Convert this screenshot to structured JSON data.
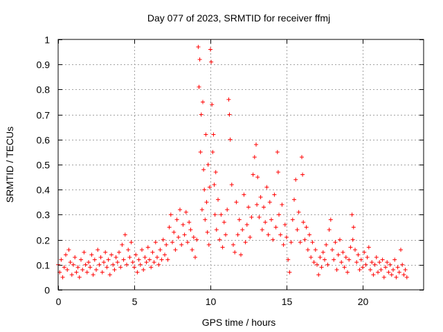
{
  "chart_data": {
    "type": "scatter",
    "title": "Day 077 of 2023, SRMTID for receiver ffmj",
    "xlabel": "GPS time / hours",
    "ylabel": "SRMTID / TECUs",
    "xlim": [
      0,
      24
    ],
    "ylim": [
      0,
      1
    ],
    "xticks": [
      0,
      5,
      10,
      15,
      20
    ],
    "xtick_labels": [
      "0",
      "5",
      "10",
      "15",
      "20"
    ],
    "yticks": [
      0,
      0.1,
      0.2,
      0.3,
      0.4,
      0.5,
      0.6,
      0.7,
      0.8,
      0.9,
      1
    ],
    "ytick_labels": [
      "0",
      "0.1",
      "0.2",
      "0.3",
      "0.4",
      "0.5",
      "0.6",
      "0.7",
      "0.8",
      "0.9",
      "1"
    ],
    "grid": true,
    "marker": "+",
    "color": "#ff0000",
    "series": [
      {
        "name": "ffmj",
        "points": [
          [
            0.0,
            0.1
          ],
          [
            0.1,
            0.07
          ],
          [
            0.2,
            0.12
          ],
          [
            0.3,
            0.05
          ],
          [
            0.4,
            0.09
          ],
          [
            0.5,
            0.14
          ],
          [
            0.6,
            0.08
          ],
          [
            0.7,
            0.16
          ],
          [
            0.8,
            0.11
          ],
          [
            0.9,
            0.06
          ],
          [
            1.0,
            0.1
          ],
          [
            1.1,
            0.13
          ],
          [
            1.2,
            0.07
          ],
          [
            1.3,
            0.09
          ],
          [
            1.4,
            0.05
          ],
          [
            1.5,
            0.12
          ],
          [
            1.6,
            0.08
          ],
          [
            1.7,
            0.15
          ],
          [
            1.8,
            0.1
          ],
          [
            1.9,
            0.07
          ],
          [
            2.0,
            0.11
          ],
          [
            2.1,
            0.09
          ],
          [
            2.2,
            0.14
          ],
          [
            2.3,
            0.06
          ],
          [
            2.4,
            0.12
          ],
          [
            2.5,
            0.08
          ],
          [
            2.6,
            0.16
          ],
          [
            2.7,
            0.1
          ],
          [
            2.8,
            0.13
          ],
          [
            2.9,
            0.07
          ],
          [
            3.0,
            0.11
          ],
          [
            3.1,
            0.15
          ],
          [
            3.2,
            0.09
          ],
          [
            3.3,
            0.12
          ],
          [
            3.4,
            0.06
          ],
          [
            3.5,
            0.14
          ],
          [
            3.6,
            0.1
          ],
          [
            3.7,
            0.08
          ],
          [
            3.8,
            0.13
          ],
          [
            3.9,
            0.11
          ],
          [
            4.0,
            0.15
          ],
          [
            4.1,
            0.09
          ],
          [
            4.2,
            0.18
          ],
          [
            4.3,
            0.12
          ],
          [
            4.4,
            0.22
          ],
          [
            4.5,
            0.1
          ],
          [
            4.6,
            0.16
          ],
          [
            4.7,
            0.13
          ],
          [
            4.8,
            0.19
          ],
          [
            4.9,
            0.11
          ],
          [
            5.0,
            0.09
          ],
          [
            5.1,
            0.14
          ],
          [
            5.2,
            0.07
          ],
          [
            5.3,
            0.12
          ],
          [
            5.4,
            0.1
          ],
          [
            5.5,
            0.16
          ],
          [
            5.6,
            0.08
          ],
          [
            5.7,
            0.13
          ],
          [
            5.8,
            0.11
          ],
          [
            5.9,
            0.17
          ],
          [
            6.0,
            0.12
          ],
          [
            6.1,
            0.09
          ],
          [
            6.2,
            0.15
          ],
          [
            6.3,
            0.11
          ],
          [
            6.4,
            0.19
          ],
          [
            6.5,
            0.13
          ],
          [
            6.6,
            0.1
          ],
          [
            6.7,
            0.16
          ],
          [
            6.8,
            0.12
          ],
          [
            6.9,
            0.2
          ],
          [
            7.0,
            0.14
          ],
          [
            7.1,
            0.18
          ],
          [
            7.2,
            0.12
          ],
          [
            7.3,
            0.25
          ],
          [
            7.4,
            0.3
          ],
          [
            7.5,
            0.19
          ],
          [
            7.6,
            0.23
          ],
          [
            7.7,
            0.16
          ],
          [
            7.8,
            0.28
          ],
          [
            7.9,
            0.21
          ],
          [
            8.0,
            0.32
          ],
          [
            8.1,
            0.18
          ],
          [
            8.2,
            0.26
          ],
          [
            8.3,
            0.22
          ],
          [
            8.4,
            0.31
          ],
          [
            8.5,
            0.19
          ],
          [
            8.6,
            0.27
          ],
          [
            8.7,
            0.24
          ],
          [
            8.8,
            0.16
          ],
          [
            8.9,
            0.21
          ],
          [
            9.0,
            0.13
          ],
          [
            9.1,
            0.2
          ],
          [
            9.2,
            0.97
          ],
          [
            9.25,
            0.81
          ],
          [
            9.3,
            0.92
          ],
          [
            9.35,
            0.55
          ],
          [
            9.4,
            0.7
          ],
          [
            9.45,
            0.32
          ],
          [
            9.5,
            0.75
          ],
          [
            9.55,
            0.48
          ],
          [
            9.6,
            0.4
          ],
          [
            9.65,
            0.28
          ],
          [
            9.7,
            0.62
          ],
          [
            9.75,
            0.35
          ],
          [
            9.8,
            0.23
          ],
          [
            9.85,
            0.5
          ],
          [
            9.9,
            0.18
          ],
          [
            9.95,
            0.41
          ],
          [
            10.0,
            0.96
          ],
          [
            10.05,
            0.91
          ],
          [
            10.1,
            0.74
          ],
          [
            10.15,
            0.55
          ],
          [
            10.2,
            0.62
          ],
          [
            10.25,
            0.42
          ],
          [
            10.3,
            0.3
          ],
          [
            10.35,
            0.47
          ],
          [
            10.4,
            0.24
          ],
          [
            10.5,
            0.36
          ],
          [
            10.6,
            0.2
          ],
          [
            10.7,
            0.3
          ],
          [
            10.8,
            0.17
          ],
          [
            10.9,
            0.27
          ],
          [
            11.0,
            0.22
          ],
          [
            11.1,
            0.32
          ],
          [
            11.2,
            0.76
          ],
          [
            11.25,
            0.7
          ],
          [
            11.3,
            0.6
          ],
          [
            11.4,
            0.42
          ],
          [
            11.5,
            0.18
          ],
          [
            11.6,
            0.15
          ],
          [
            11.7,
            0.35
          ],
          [
            11.8,
            0.22
          ],
          [
            11.9,
            0.28
          ],
          [
            12.0,
            0.14
          ],
          [
            12.1,
            0.24
          ],
          [
            12.2,
            0.38
          ],
          [
            12.3,
            0.19
          ],
          [
            12.4,
            0.26
          ],
          [
            12.5,
            0.33
          ],
          [
            12.6,
            0.21
          ],
          [
            12.7,
            0.29
          ],
          [
            12.8,
            0.46
          ],
          [
            12.9,
            0.53
          ],
          [
            13.0,
            0.58
          ],
          [
            13.05,
            0.34
          ],
          [
            13.1,
            0.45
          ],
          [
            13.2,
            0.29
          ],
          [
            13.3,
            0.37
          ],
          [
            13.4,
            0.24
          ],
          [
            13.5,
            0.33
          ],
          [
            13.6,
            0.27
          ],
          [
            13.7,
            0.41
          ],
          [
            13.8,
            0.22
          ],
          [
            13.9,
            0.35
          ],
          [
            14.0,
            0.28
          ],
          [
            14.1,
            0.2
          ],
          [
            14.2,
            0.38
          ],
          [
            14.3,
            0.25
          ],
          [
            14.4,
            0.55
          ],
          [
            14.45,
            0.47
          ],
          [
            14.5,
            0.3
          ],
          [
            14.6,
            0.22
          ],
          [
            14.7,
            0.34
          ],
          [
            14.8,
            0.18
          ],
          [
            14.9,
            0.26
          ],
          [
            15.0,
            0.21
          ],
          [
            15.1,
            0.12
          ],
          [
            15.2,
            0.07
          ],
          [
            15.3,
            0.19
          ],
          [
            15.4,
            0.28
          ],
          [
            15.5,
            0.36
          ],
          [
            15.6,
            0.44
          ],
          [
            15.7,
            0.24
          ],
          [
            15.8,
            0.31
          ],
          [
            15.9,
            0.19
          ],
          [
            16.0,
            0.53
          ],
          [
            16.05,
            0.46
          ],
          [
            16.1,
            0.27
          ],
          [
            16.2,
            0.2
          ],
          [
            16.3,
            0.25
          ],
          [
            16.4,
            0.16
          ],
          [
            16.5,
            0.22
          ],
          [
            16.6,
            0.13
          ],
          [
            16.7,
            0.19
          ],
          [
            16.8,
            0.11
          ],
          [
            16.9,
            0.16
          ],
          [
            17.0,
            0.1
          ],
          [
            17.1,
            0.06
          ],
          [
            17.2,
            0.13
          ],
          [
            17.3,
            0.09
          ],
          [
            17.4,
            0.15
          ],
          [
            17.5,
            0.12
          ],
          [
            17.6,
            0.18
          ],
          [
            17.7,
            0.1
          ],
          [
            17.8,
            0.24
          ],
          [
            17.9,
            0.28
          ],
          [
            18.0,
            0.16
          ],
          [
            18.1,
            0.12
          ],
          [
            18.2,
            0.19
          ],
          [
            18.3,
            0.08
          ],
          [
            18.4,
            0.14
          ],
          [
            18.5,
            0.2
          ],
          [
            18.6,
            0.11
          ],
          [
            18.7,
            0.15
          ],
          [
            18.8,
            0.09
          ],
          [
            18.9,
            0.13
          ],
          [
            19.0,
            0.07
          ],
          [
            19.1,
            0.12
          ],
          [
            19.2,
            0.17
          ],
          [
            19.3,
            0.3
          ],
          [
            19.35,
            0.2
          ],
          [
            19.4,
            0.25
          ],
          [
            19.5,
            0.16
          ],
          [
            19.6,
            0.11
          ],
          [
            19.7,
            0.14
          ],
          [
            19.8,
            0.08
          ],
          [
            19.9,
            0.12
          ],
          [
            20.0,
            0.09
          ],
          [
            20.1,
            0.15
          ],
          [
            20.2,
            0.1
          ],
          [
            20.3,
            0.13
          ],
          [
            20.4,
            0.17
          ],
          [
            20.5,
            0.08
          ],
          [
            20.6,
            0.11
          ],
          [
            20.7,
            0.06
          ],
          [
            20.8,
            0.1
          ],
          [
            20.9,
            0.13
          ],
          [
            21.0,
            0.07
          ],
          [
            21.1,
            0.11
          ],
          [
            21.2,
            0.08
          ],
          [
            21.3,
            0.12
          ],
          [
            21.4,
            0.05
          ],
          [
            21.5,
            0.09
          ],
          [
            21.6,
            0.11
          ],
          [
            21.7,
            0.07
          ],
          [
            21.8,
            0.1
          ],
          [
            21.9,
            0.06
          ],
          [
            22.0,
            0.08
          ],
          [
            22.1,
            0.12
          ],
          [
            22.2,
            0.05
          ],
          [
            22.3,
            0.09
          ],
          [
            22.4,
            0.07
          ],
          [
            22.5,
            0.16
          ],
          [
            22.6,
            0.1
          ],
          [
            22.7,
            0.06
          ],
          [
            22.8,
            0.08
          ],
          [
            22.9,
            0.05
          ]
        ]
      }
    ]
  }
}
